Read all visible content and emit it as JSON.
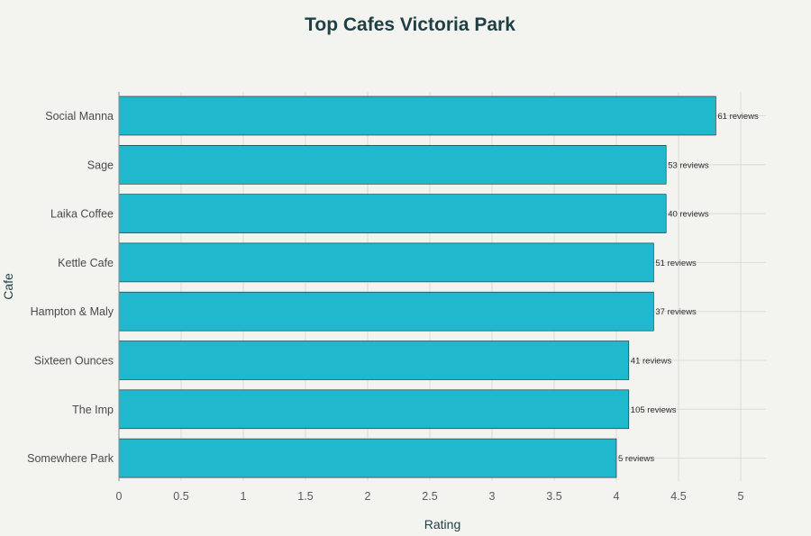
{
  "chart_data": {
    "type": "bar",
    "orientation": "horizontal",
    "title": "Top Cafes Victoria Park",
    "xlabel": "Rating",
    "ylabel": "Cafe",
    "xlim": [
      0,
      5.2
    ],
    "xticks": [
      "0",
      "0.5",
      "1",
      "1.5",
      "2",
      "2.5",
      "3",
      "3.5",
      "4",
      "4.5",
      "5"
    ],
    "grid": true,
    "bar_color": "#1fb8cd",
    "categories": [
      "Social Manna",
      "Sage",
      "Laika Coffee",
      "Kettle Cafe",
      "Hampton & Maly",
      "Sixteen Ounces",
      "The Imp",
      "Somewhere Park"
    ],
    "values": [
      4.8,
      4.4,
      4.4,
      4.3,
      4.3,
      4.1,
      4.1,
      4.0
    ],
    "data_labels": [
      "61 reviews",
      "53 reviews",
      "40 reviews",
      "51 reviews",
      "37 reviews",
      "41 reviews",
      "105 reviews",
      "5 reviews"
    ]
  }
}
